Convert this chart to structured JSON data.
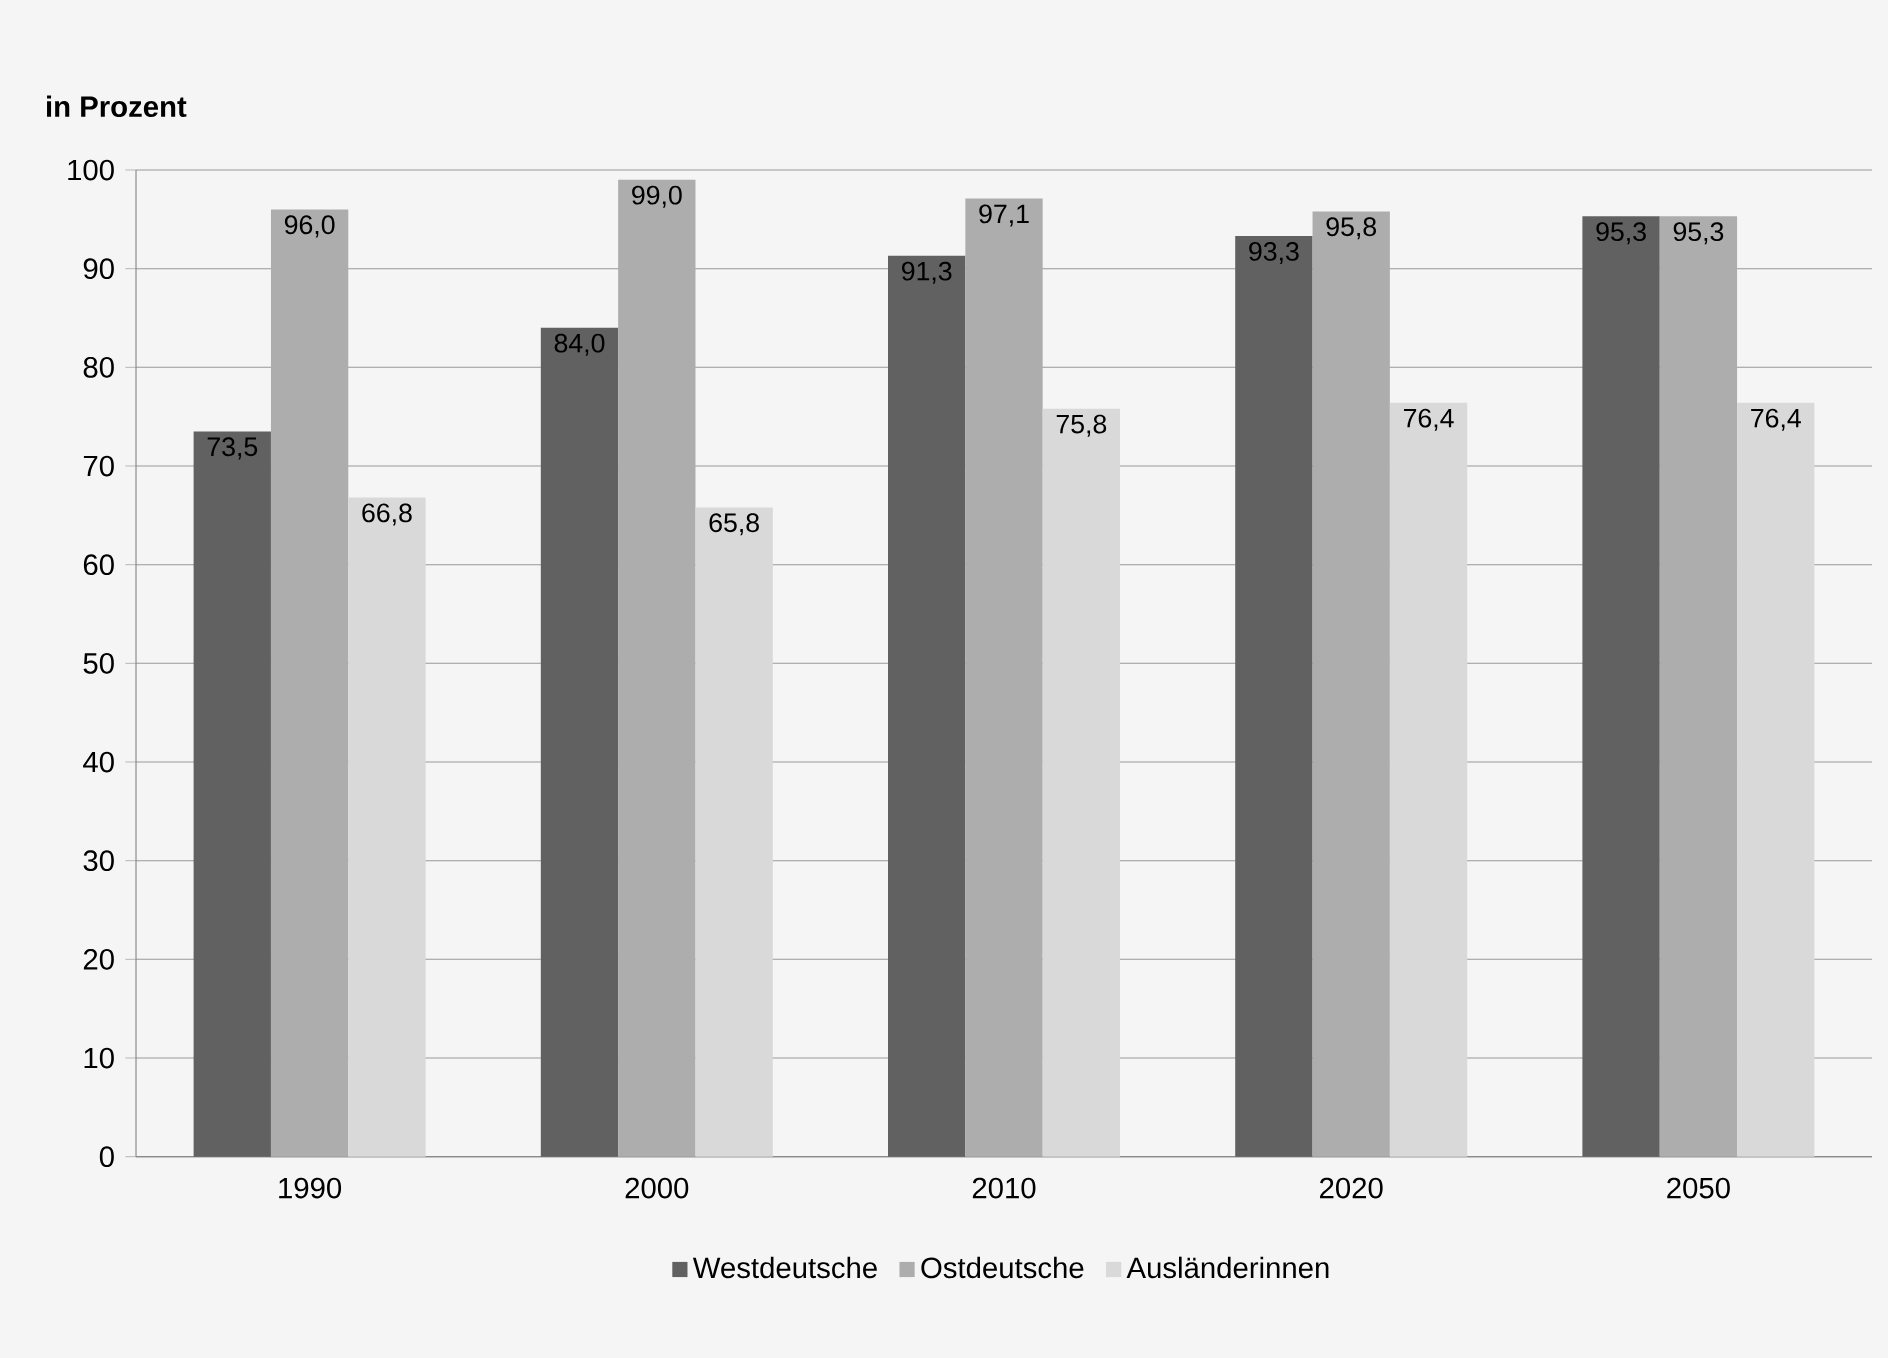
{
  "chart_data": {
    "type": "bar",
    "ylabel": "in Prozent",
    "categories": [
      "1990",
      "2000",
      "2010",
      "2020",
      "2050"
    ],
    "series": [
      {
        "name": "Westdeutsche",
        "color": "#616161",
        "values": [
          73.5,
          84.0,
          91.3,
          93.3,
          95.3
        ],
        "value_labels": [
          "73,5",
          "84,0",
          "91,3",
          "93,3",
          "95,3"
        ]
      },
      {
        "name": "Ostdeutsche",
        "color": "#adadad",
        "values": [
          96.0,
          99.0,
          97.1,
          95.8,
          95.3
        ],
        "value_labels": [
          "96,0",
          "99,0",
          "97,1",
          "95,8",
          "95,3"
        ]
      },
      {
        "name": "Ausländerinnen",
        "color": "#d9d9d9",
        "values": [
          66.8,
          65.8,
          75.8,
          76.4,
          76.4
        ],
        "value_labels": [
          "66,8",
          "65,8",
          "75,8",
          "76,4",
          "76,4"
        ]
      }
    ],
    "ylim": [
      0,
      100
    ],
    "yticks": [
      0,
      10,
      20,
      30,
      40,
      50,
      60,
      70,
      80,
      90,
      100
    ],
    "grid": "y",
    "legend": "bottom"
  }
}
